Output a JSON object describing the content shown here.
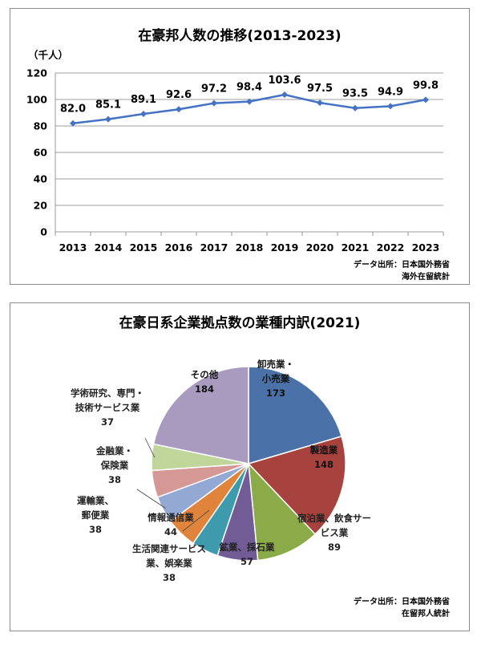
{
  "line_panel": {
    "source_lines": [
      "データ出所：日本国外務省",
      "海外在留統計"
    ]
  },
  "pie_panel": {
    "source_lines": [
      "データ出所：日本国外務省",
      "在留邦人統計"
    ]
  },
  "chart_data": [
    {
      "type": "line",
      "title": "在豪邦人数の推移(2013-2023)",
      "ylabel": "（千人）",
      "xlabel": "",
      "categories": [
        "2013",
        "2014",
        "2015",
        "2016",
        "2017",
        "2018",
        "2019",
        "2020",
        "2021",
        "2022",
        "2023"
      ],
      "values": [
        82.0,
        85.1,
        89.1,
        92.6,
        97.2,
        98.4,
        103.6,
        97.5,
        93.5,
        94.9,
        99.8
      ],
      "value_labels": [
        "82.0",
        "85.1",
        "89.1",
        "92.6",
        "97.2",
        "98.4",
        "103.6",
        "97.5",
        "93.5",
        "94.9",
        "99.8"
      ],
      "ylim": [
        0,
        120
      ],
      "yticks": [
        "0",
        "20",
        "40",
        "60",
        "80",
        "100",
        "120"
      ],
      "grid": true,
      "legend": "none",
      "line_color": "#4472c4"
    },
    {
      "type": "pie",
      "title": "在豪日系企業拠点数の業種内訳(2021)",
      "legend": "none",
      "slices": [
        {
          "label_lines": [
            "卸売業・",
            "小売業"
          ],
          "value": 173,
          "value_label": "173",
          "color": "#4a72a8"
        },
        {
          "label_lines": [
            "製造業"
          ],
          "value": 148,
          "value_label": "148",
          "color": "#a8423f"
        },
        {
          "label_lines": [
            "宿泊業、飲食サー",
            "ビス業"
          ],
          "value": 89,
          "value_label": "89",
          "color": "#8aab47"
        },
        {
          "label_lines": [
            "鉱業、採石業"
          ],
          "value": 57,
          "value_label": "57",
          "color": "#725c95"
        },
        {
          "label_lines": [
            "生活関連サービス",
            "業、娯楽業"
          ],
          "value": 38,
          "value_label": "38",
          "color": "#3e9aad"
        },
        {
          "label_lines": [
            "情報通信業"
          ],
          "value": 44,
          "value_label": "44",
          "color": "#e0843b"
        },
        {
          "label_lines": [
            "運輸業、",
            "郵便業"
          ],
          "value": 38,
          "value_label": "38",
          "color": "#93a9d4"
        },
        {
          "label_lines": [
            "金融業・",
            "保険業"
          ],
          "value": 38,
          "value_label": "38",
          "color": "#d59894"
        },
        {
          "label_lines": [
            "学術研究、専門・",
            "技術サービス業"
          ],
          "value": 37,
          "value_label": "37",
          "color": "#bfd59a"
        },
        {
          "label_lines": [
            "その他"
          ],
          "value": 184,
          "value_label": "184",
          "color": "#a99bc0"
        }
      ]
    }
  ]
}
